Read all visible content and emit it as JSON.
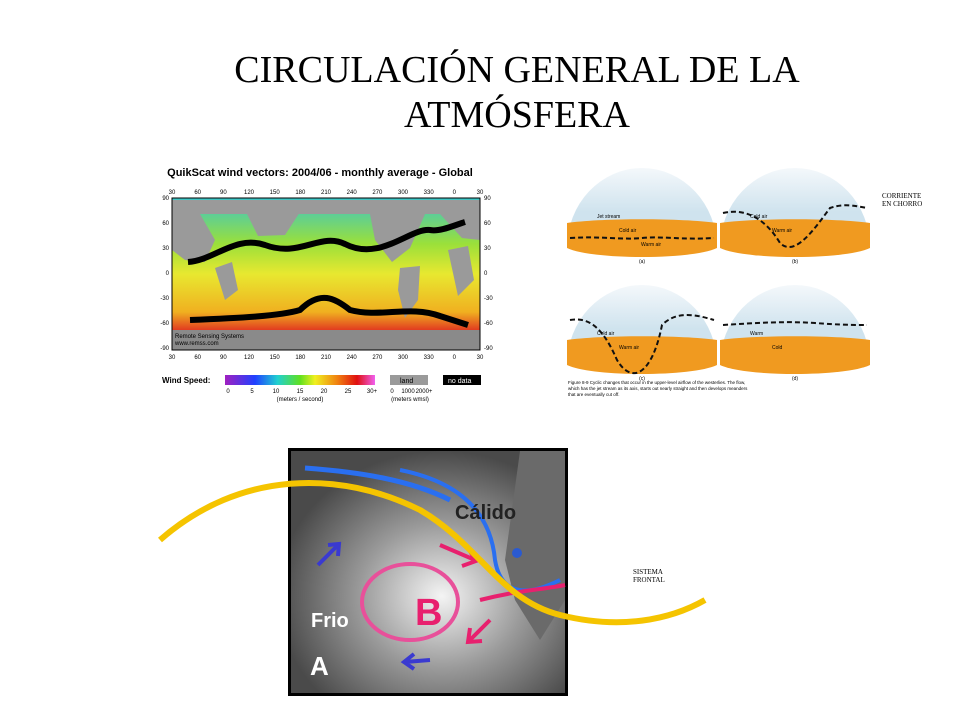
{
  "title": {
    "line1": "CIRCULACIÓN GENERAL DE LA",
    "line2": "ATMÓSFERA"
  },
  "wind_map": {
    "title": "QuikScat wind vectors: 2004/06 - monthly average - Global",
    "lon_ticks": [
      "30",
      "60",
      "90",
      "120",
      "150",
      "180",
      "210",
      "240",
      "270",
      "300",
      "330",
      "0",
      "30"
    ],
    "lat_ticks": [
      "90",
      "60",
      "30",
      "0",
      "-30",
      "-60",
      "-90"
    ],
    "credit": [
      "Remote Sensing Systems",
      "www.remss.com"
    ],
    "legend_label": "Wind Speed:",
    "speed_ticks": [
      "0",
      "5",
      "10",
      "15",
      "20",
      "25",
      "30+"
    ],
    "speed_unit": "(meters / second)",
    "land": "land",
    "no_data": "no data",
    "elevation_ticks": [
      "0",
      "1000",
      "2000+"
    ],
    "elevation_unit": "(meters wmsl)"
  },
  "hemispheres": {
    "panels": [
      {
        "letter": "(a)",
        "labels": [
          "Jet stream",
          "Cold air",
          "Warm air"
        ]
      },
      {
        "letter": "(b)",
        "labels": [
          "Cold air",
          "Warm air"
        ]
      },
      {
        "letter": "(c)",
        "labels": [
          "Cold air",
          "Warm air"
        ]
      },
      {
        "letter": "(d)",
        "labels": [
          "Warm",
          "Cold"
        ]
      }
    ],
    "caption": "Figure 8-9  Cyclic changes that occur in the upper-level airflow of the westerlies. The flow, which has the jet stream as its axis, starts out nearly straight and then develops meanders that are eventually cut off."
  },
  "jet_label": {
    "line1": "CORRIENTE",
    "line2": "EN CHORRO"
  },
  "satellite": {
    "warm": "Cálido",
    "cold": "Frio",
    "low": "B",
    "high": "A"
  },
  "front_label": {
    "line1": "SISTEMA",
    "line2": "FRONTAL"
  }
}
